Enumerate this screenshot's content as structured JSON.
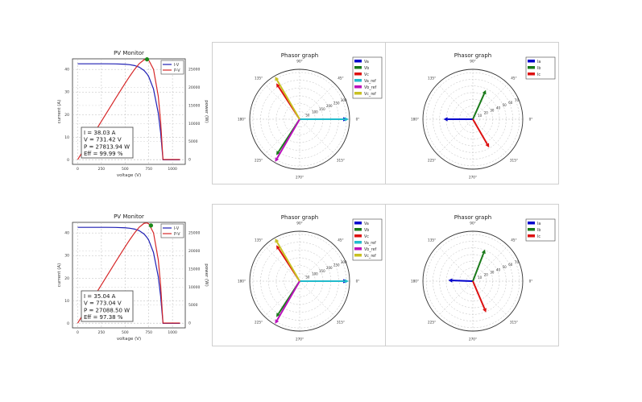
{
  "colors": {
    "iv": "#1f1fb4",
    "pv": "#d62728",
    "marker": "#1a8a1a",
    "Va": "#0000cc",
    "Vb": "#1a7a1a",
    "Vc": "#dd1111",
    "Va_ref": "#22bbcc",
    "Vb_ref": "#bb11bb",
    "Vc_ref": "#c8c020",
    "Ia": "#0000cc",
    "Ib": "#1a7a1a",
    "Ic": "#dd1111"
  },
  "chart_data": [
    {
      "type": "line",
      "id": "pv-top",
      "title": "PV Monitor",
      "xlabel": "voltage (V)",
      "ylabel": "current (A)",
      "ylabel_right": "power (W)",
      "xlim": [
        -55,
        1135
      ],
      "ylim": [
        -2,
        44.7
      ],
      "ylim_right": [
        -1340,
        27960
      ],
      "xticks": [
        0,
        250,
        500,
        750,
        1000
      ],
      "yticks": [
        0,
        10,
        20,
        30,
        40
      ],
      "yticks_right": [
        0,
        5000,
        10000,
        15000,
        20000,
        25000
      ],
      "grid": true,
      "legend": [
        "I-V",
        "P-V"
      ],
      "legend_position": "top-right",
      "voltage": [
        0,
        100,
        200,
        300,
        400,
        500,
        550,
        600,
        650,
        700,
        731,
        750,
        800,
        850,
        875,
        900,
        1000,
        1080
      ],
      "current": [
        42.5,
        42.5,
        42.5,
        42.49,
        42.45,
        42.3,
        42.1,
        41.72,
        40.98,
        39.55,
        38.03,
        36.75,
        31.3,
        20.7,
        12.05,
        0,
        0,
        0
      ],
      "power": [
        0,
        4250,
        8500,
        12747,
        16980,
        21150,
        23155,
        25032,
        26637,
        27685,
        27800,
        27563,
        25040,
        17595,
        10544,
        0,
        0,
        0
      ],
      "operating_point": {
        "V": 731.42,
        "P": 27813.94
      },
      "info": [
        "I = 38.03 A",
        "V = 731.42 V",
        "P = 27813.94 W",
        "Eff = 99.99 %"
      ]
    },
    {
      "type": "polar",
      "id": "phasor-v-top",
      "title": "Phasor graph",
      "rmax": 320,
      "rticks": [
        50,
        100,
        150,
        200,
        250,
        300
      ],
      "angle_ticks": [
        "0°",
        "45°",
        "90°",
        "135°",
        "180°",
        "225°",
        "270°",
        "315°"
      ],
      "legend_position": "top-right",
      "series": [
        {
          "name": "Va",
          "angle": 0,
          "magnitude": 305
        },
        {
          "name": "Vb",
          "angle": 237,
          "magnitude": 275
        },
        {
          "name": "Vc",
          "angle": 123,
          "magnitude": 275
        },
        {
          "name": "Va_ref",
          "angle": 0,
          "magnitude": 315
        },
        {
          "name": "Vb_ref",
          "angle": 240,
          "magnitude": 315
        },
        {
          "name": "Vc_ref",
          "angle": 120,
          "magnitude": 315
        }
      ]
    },
    {
      "type": "polar",
      "id": "phasor-i-top",
      "title": "Phasor graph",
      "rmax": 75,
      "rticks": [
        10,
        20,
        30,
        40,
        50,
        60,
        70
      ],
      "angle_ticks": [
        "0°",
        "45°",
        "90°",
        "135°",
        "180°",
        "225°",
        "270°",
        "315°"
      ],
      "legend_position": "top-right",
      "series": [
        {
          "name": "Ia",
          "angle": 180,
          "magnitude": 44
        },
        {
          "name": "Ib",
          "angle": 66,
          "magnitude": 48
        },
        {
          "name": "Ic",
          "angle": 300,
          "magnitude": 49
        }
      ]
    },
    {
      "type": "line",
      "id": "pv-bottom",
      "title": "PV Monitor",
      "xlabel": "voltage (V)",
      "ylabel": "current (A)",
      "ylabel_right": "power (W)",
      "xlim": [
        -55,
        1135
      ],
      "ylim": [
        -2,
        44.7
      ],
      "ylim_right": [
        -1340,
        27960
      ],
      "xticks": [
        0,
        250,
        500,
        750,
        1000
      ],
      "yticks": [
        0,
        10,
        20,
        30,
        40
      ],
      "yticks_right": [
        0,
        5000,
        10000,
        15000,
        20000,
        25000
      ],
      "grid": true,
      "legend": [
        "I-V",
        "P-V"
      ],
      "legend_position": "top-right",
      "voltage": [
        0,
        100,
        200,
        300,
        400,
        500,
        550,
        600,
        650,
        700,
        731,
        750,
        800,
        850,
        875,
        900,
        1000,
        1080
      ],
      "current": [
        42.5,
        42.5,
        42.5,
        42.49,
        42.45,
        42.3,
        42.1,
        41.72,
        40.98,
        39.55,
        38.03,
        36.75,
        31.3,
        20.7,
        12.05,
        0,
        0,
        0
      ],
      "power": [
        0,
        4250,
        8500,
        12747,
        16980,
        21150,
        23155,
        25032,
        26637,
        27685,
        27800,
        27563,
        25040,
        17595,
        10544,
        0,
        0,
        0
      ],
      "operating_point": {
        "V": 773.04,
        "P": 27088.5
      },
      "info": [
        "I = 35.04 A",
        "V = 773.04 V",
        "P = 27088.50 W",
        "Eff = 97.38 %"
      ]
    },
    {
      "type": "polar",
      "id": "phasor-v-bottom",
      "title": "Phasor graph",
      "rmax": 320,
      "rticks": [
        50,
        100,
        150,
        200,
        250,
        300
      ],
      "angle_ticks": [
        "0°",
        "45°",
        "90°",
        "135°",
        "180°",
        "225°",
        "270°",
        "315°"
      ],
      "legend_position": "top-right",
      "series": [
        {
          "name": "Va",
          "angle": 0,
          "magnitude": 305
        },
        {
          "name": "Vb",
          "angle": 237,
          "magnitude": 275
        },
        {
          "name": "Vc",
          "angle": 123,
          "magnitude": 275
        },
        {
          "name": "Va_ref",
          "angle": 0,
          "magnitude": 315
        },
        {
          "name": "Vb_ref",
          "angle": 240,
          "magnitude": 315
        },
        {
          "name": "Vc_ref",
          "angle": 120,
          "magnitude": 315
        }
      ]
    },
    {
      "type": "polar",
      "id": "phasor-i-bottom",
      "title": "Phasor graph",
      "rmax": 75,
      "rticks": [
        10,
        20,
        30,
        40,
        50,
        60,
        70
      ],
      "angle_ticks": [
        "0°",
        "45°",
        "90°",
        "135°",
        "180°",
        "225°",
        "270°",
        "315°"
      ],
      "legend_position": "top-right",
      "series": [
        {
          "name": "Ia",
          "angle": 178,
          "magnitude": 37
        },
        {
          "name": "Ib",
          "angle": 69,
          "magnitude": 51
        },
        {
          "name": "Ic",
          "angle": 293,
          "magnitude": 51
        }
      ]
    }
  ]
}
